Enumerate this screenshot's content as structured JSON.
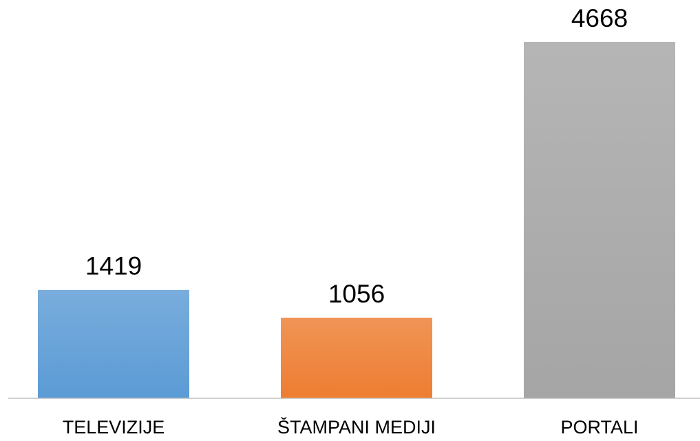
{
  "chart_data": {
    "type": "bar",
    "categories": [
      "TELEVIZIJE",
      "ŠTAMPANI MEDIJI",
      "PORTALI"
    ],
    "values": [
      1419,
      1056,
      4668
    ],
    "colors": [
      "#5b9bd5",
      "#ed7d31",
      "#a5a5a5"
    ]
  }
}
